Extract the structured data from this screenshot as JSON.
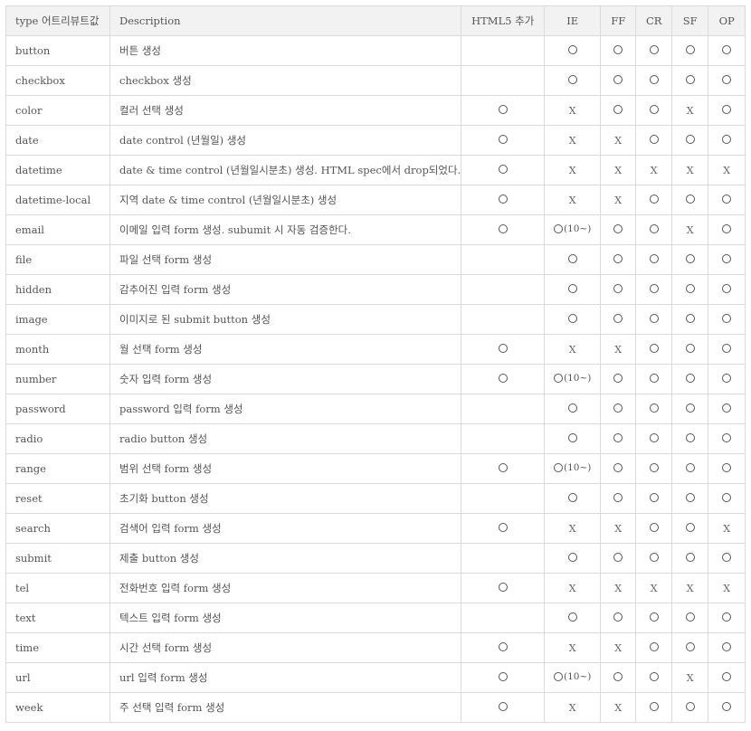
{
  "headers": {
    "type": "type 어트리뷰트값",
    "description": "Description",
    "html5": "HTML5 추가",
    "ie": "IE",
    "ff": "FF",
    "cr": "CR",
    "sf": "SF",
    "op": "OP"
  },
  "legend": {
    "o": "○",
    "x": "X",
    "o10": "○(10~)"
  },
  "rows": [
    {
      "type": "button",
      "desc": "버튼 생성",
      "html5": "",
      "ie": "o",
      "ff": "o",
      "cr": "o",
      "sf": "o",
      "op": "o"
    },
    {
      "type": "checkbox",
      "desc": "checkbox 생성",
      "html5": "",
      "ie": "o",
      "ff": "o",
      "cr": "o",
      "sf": "o",
      "op": "o"
    },
    {
      "type": "color",
      "desc": "컬러 선택 생성",
      "html5": "o",
      "ie": "x",
      "ff": "o",
      "cr": "o",
      "sf": "x",
      "op": "o"
    },
    {
      "type": "date",
      "desc": "date control (년월일) 생성",
      "html5": "o",
      "ie": "x",
      "ff": "x",
      "cr": "o",
      "sf": "o",
      "op": "o"
    },
    {
      "type": "datetime",
      "desc": "date & time control (년월일시분초) 생성. HTML spec에서 drop되었다.",
      "html5": "o",
      "ie": "x",
      "ff": "x",
      "cr": "x",
      "sf": "x",
      "op": "x"
    },
    {
      "type": "datetime-local",
      "desc": "지역 date & time control (년월일시분초) 생성",
      "html5": "o",
      "ie": "x",
      "ff": "x",
      "cr": "o",
      "sf": "o",
      "op": "o"
    },
    {
      "type": "email",
      "desc": "이메일 입력 form 생성. subumit 시 자동 검증한다.",
      "html5": "o",
      "ie": "o10",
      "ff": "o",
      "cr": "o",
      "sf": "x",
      "op": "o"
    },
    {
      "type": "file",
      "desc": "파일 선택 form 생성",
      "html5": "",
      "ie": "o",
      "ff": "o",
      "cr": "o",
      "sf": "o",
      "op": "o"
    },
    {
      "type": "hidden",
      "desc": "감추어진 입력 form 생성",
      "html5": "",
      "ie": "o",
      "ff": "o",
      "cr": "o",
      "sf": "o",
      "op": "o"
    },
    {
      "type": "image",
      "desc": "이미지로 된 submit button 생성",
      "html5": "",
      "ie": "o",
      "ff": "o",
      "cr": "o",
      "sf": "o",
      "op": "o"
    },
    {
      "type": "month",
      "desc": "월 선택 form 생성",
      "html5": "o",
      "ie": "x",
      "ff": "x",
      "cr": "o",
      "sf": "o",
      "op": "o"
    },
    {
      "type": "number",
      "desc": "숫자 입력 form 생성",
      "html5": "o",
      "ie": "o10",
      "ff": "o",
      "cr": "o",
      "sf": "o",
      "op": "o"
    },
    {
      "type": "password",
      "desc": "password 입력 form 생성",
      "html5": "",
      "ie": "o",
      "ff": "o",
      "cr": "o",
      "sf": "o",
      "op": "o"
    },
    {
      "type": "radio",
      "desc": "radio button 생성",
      "html5": "",
      "ie": "o",
      "ff": "o",
      "cr": "o",
      "sf": "o",
      "op": "o"
    },
    {
      "type": "range",
      "desc": "범위 선택 form 생성",
      "html5": "o",
      "ie": "o10",
      "ff": "o",
      "cr": "o",
      "sf": "o",
      "op": "o"
    },
    {
      "type": "reset",
      "desc": "초기화 button 생성",
      "html5": "",
      "ie": "o",
      "ff": "o",
      "cr": "o",
      "sf": "o",
      "op": "o"
    },
    {
      "type": "search",
      "desc": "검색어 입력 form 생성",
      "html5": "o",
      "ie": "x",
      "ff": "x",
      "cr": "o",
      "sf": "o",
      "op": "x"
    },
    {
      "type": "submit",
      "desc": "제출 button 생성",
      "html5": "",
      "ie": "o",
      "ff": "o",
      "cr": "o",
      "sf": "o",
      "op": "o"
    },
    {
      "type": "tel",
      "desc": "전화번호 입력 form 생성",
      "html5": "o",
      "ie": "x",
      "ff": "x",
      "cr": "x",
      "sf": "x",
      "op": "x"
    },
    {
      "type": "text",
      "desc": "텍스트 입력 form 생성",
      "html5": "",
      "ie": "o",
      "ff": "o",
      "cr": "o",
      "sf": "o",
      "op": "o"
    },
    {
      "type": "time",
      "desc": "시간 선택 form 생성",
      "html5": "o",
      "ie": "x",
      "ff": "x",
      "cr": "o",
      "sf": "o",
      "op": "o"
    },
    {
      "type": "url",
      "desc": "url 입력 form 생성",
      "html5": "o",
      "ie": "o10",
      "ff": "o",
      "cr": "o",
      "sf": "x",
      "op": "o"
    },
    {
      "type": "week",
      "desc": "주 선택 입력 form 생성",
      "html5": "o",
      "ie": "x",
      "ff": "x",
      "cr": "o",
      "sf": "o",
      "op": "o"
    }
  ]
}
